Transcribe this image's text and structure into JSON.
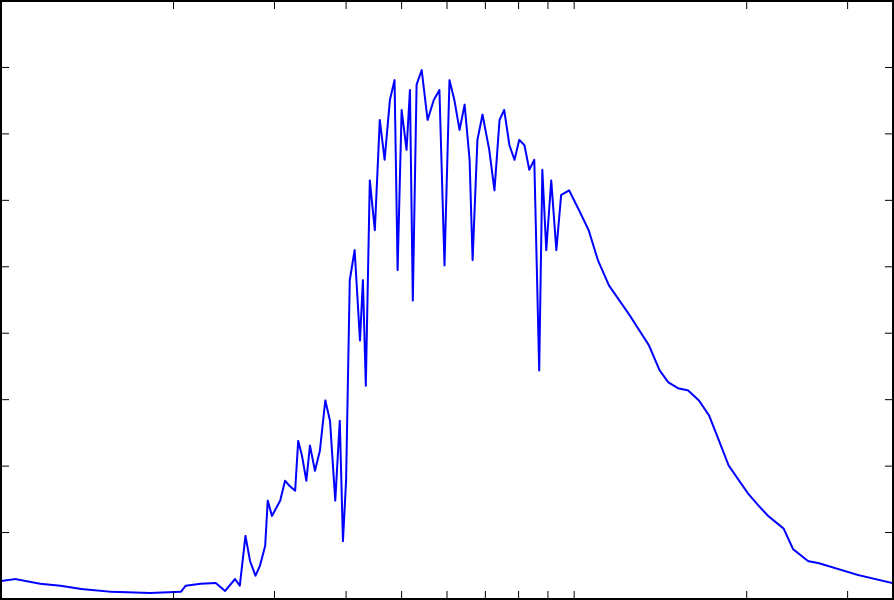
{
  "chart_data": {
    "type": "line",
    "color": "#0000ff",
    "xscale": "log",
    "xlim": [
      1,
      36
    ],
    "xticks": [
      2,
      3,
      4,
      5,
      6,
      7,
      8,
      9,
      10,
      20,
      30
    ],
    "ylim": [
      0,
      9
    ],
    "yticks": [
      0,
      1,
      2,
      3,
      4,
      5,
      6,
      7,
      8,
      9
    ],
    "x": [
      1.0,
      1.06,
      1.17,
      1.27,
      1.38,
      1.55,
      1.82,
      2.06,
      2.1,
      2.23,
      2.37,
      2.46,
      2.56,
      2.61,
      2.67,
      2.72,
      2.78,
      2.83,
      2.89,
      2.92,
      2.97,
      3.07,
      3.13,
      3.19,
      3.26,
      3.3,
      3.35,
      3.41,
      3.46,
      3.53,
      3.6,
      3.68,
      3.75,
      3.83,
      3.9,
      3.95,
      4.0,
      4.06,
      4.14,
      4.23,
      4.28,
      4.33,
      4.4,
      4.49,
      4.58,
      4.67,
      4.77,
      4.86,
      4.92,
      5.0,
      5.1,
      5.17,
      5.23,
      5.31,
      5.42,
      5.55,
      5.69,
      5.82,
      5.94,
      6.06,
      6.18,
      6.31,
      6.44,
      6.57,
      6.65,
      6.78,
      6.92,
      7.11,
      7.26,
      7.41,
      7.55,
      7.71,
      7.87,
      8.02,
      8.19,
      8.35,
      8.52,
      8.69,
      8.8,
      8.94,
      9.12,
      9.31,
      9.49,
      9.8,
      10.2,
      10.6,
      11.0,
      11.5,
      12.0,
      12.5,
      13.0,
      13.5,
      14.1,
      14.6,
      15.2,
      15.8,
      16.5,
      17.2,
      17.9,
      18.6,
      19.4,
      20.1,
      21.0,
      21.8,
      23.2,
      24.1,
      25.6,
      26.7,
      28.9,
      31.3,
      35.9
    ],
    "values": [
      0.27,
      0.3,
      0.23,
      0.2,
      0.15,
      0.11,
      0.09,
      0.11,
      0.2,
      0.23,
      0.24,
      0.12,
      0.3,
      0.2,
      0.95,
      0.57,
      0.35,
      0.5,
      0.8,
      1.48,
      1.25,
      1.48,
      1.78,
      1.7,
      1.63,
      2.38,
      2.16,
      1.78,
      2.31,
      1.93,
      2.23,
      2.99,
      2.68,
      1.48,
      2.68,
      0.87,
      1.78,
      4.8,
      5.25,
      3.89,
      4.8,
      3.21,
      6.3,
      5.55,
      7.21,
      6.61,
      7.51,
      7.81,
      4.95,
      7.36,
      6.76,
      7.66,
      4.49,
      7.74,
      7.96,
      7.21,
      7.51,
      7.66,
      5.02,
      7.81,
      7.51,
      7.06,
      7.44,
      6.61,
      5.1,
      6.91,
      7.29,
      6.76,
      6.15,
      7.21,
      7.36,
      6.83,
      6.61,
      6.91,
      6.83,
      6.46,
      6.61,
      3.44,
      6.46,
      5.25,
      6.3,
      5.25,
      6.08,
      6.15,
      5.85,
      5.55,
      5.1,
      4.72,
      4.49,
      4.27,
      4.04,
      3.82,
      3.44,
      3.26,
      3.17,
      3.14,
      2.99,
      2.76,
      2.38,
      2.01,
      1.78,
      1.59,
      1.4,
      1.25,
      1.06,
      0.75,
      0.57,
      0.54,
      0.45,
      0.36,
      0.24
    ]
  }
}
